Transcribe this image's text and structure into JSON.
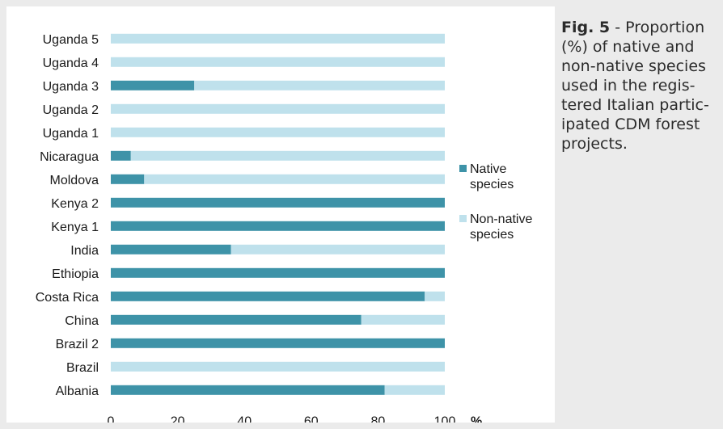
{
  "caption": {
    "fig_label": "Fig. 5",
    "separator": " - ",
    "text": "Proportion (%) of native and non-native species used in the regis-tered Italian partic-ipated CDM forest projects."
  },
  "colors": {
    "native": "#3e93a8",
    "non_native": "#bfe1ec",
    "text": "#1a1a1a"
  },
  "chart_data": {
    "type": "bar",
    "orientation": "horizontal",
    "stacked": true,
    "percent": true,
    "categories": [
      "Uganda 5",
      "Uganda 4",
      "Uganda 3",
      "Uganda 2",
      "Uganda 1",
      "Nicaragua",
      "Moldova",
      "Kenya 2",
      "Kenya 1",
      "India",
      "Ethiopia",
      "Costa Rica",
      "China",
      "Brazil 2",
      "Brazil",
      "Albania"
    ],
    "series": [
      {
        "name": "Native species",
        "values": [
          0,
          0,
          25,
          0,
          0,
          6,
          10,
          100,
          100,
          36,
          100,
          94,
          75,
          100,
          0,
          82
        ]
      },
      {
        "name": "Non-native species",
        "values": [
          100,
          100,
          75,
          100,
          100,
          94,
          90,
          0,
          0,
          64,
          0,
          6,
          25,
          0,
          100,
          18
        ]
      }
    ],
    "xlim": [
      0,
      100
    ],
    "xticks": [
      "0",
      "20",
      "40",
      "60",
      "80",
      "100"
    ],
    "xunit": "%",
    "grid": false,
    "legend_position": "right",
    "legend": [
      {
        "series": 0,
        "lines": [
          "Native",
          "species"
        ]
      },
      {
        "series": 1,
        "lines": [
          "Non-native",
          "species"
        ]
      }
    ]
  }
}
